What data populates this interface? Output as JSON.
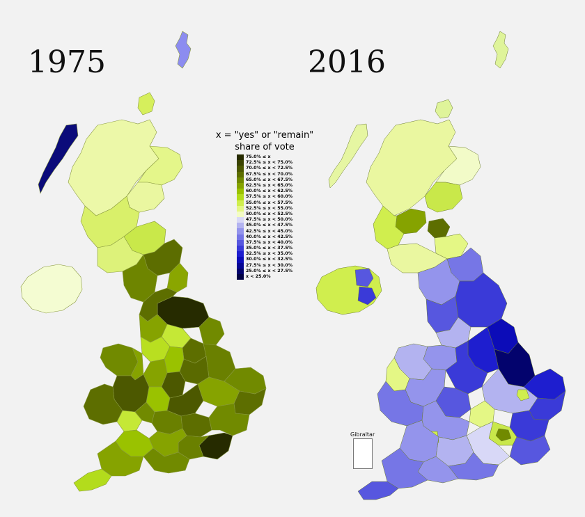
{
  "titles": {
    "left": "1975",
    "right": "2016"
  },
  "legend": {
    "title_line1": "x = \"yes\" or \"remain\"",
    "title_line2": "share of vote",
    "items": [
      {
        "label": "75.0% ≤ x",
        "color": "#262b00"
      },
      {
        "label": "72.5% ≤ x < 75.0%",
        "color": "#3a4300"
      },
      {
        "label": "70.0% ≤ x < 72.5%",
        "color": "#4c5800"
      },
      {
        "label": "67.5% ≤ x < 70.0%",
        "color": "#5d6e00"
      },
      {
        "label": "65.0% ≤ x < 67.5%",
        "color": "#718a00"
      },
      {
        "label": "62.5% ≤ x < 65.0%",
        "color": "#86a300"
      },
      {
        "label": "60.0% ≤ x < 62.5%",
        "color": "#9ac200"
      },
      {
        "label": "57.5% ≤ x < 60.0%",
        "color": "#b3dc1c"
      },
      {
        "label": "55.0% ≤ x < 57.5%",
        "color": "#d0ee4e"
      },
      {
        "label": "52.5% ≤ x < 55.0%",
        "color": "#e4f785"
      },
      {
        "label": "50.0% ≤ x < 52.5%",
        "color": "#f3fcc4"
      },
      {
        "label": "47.5% ≤ x < 50.0%",
        "color": "#d8d8f7"
      },
      {
        "label": "45.0% ≤ x < 47.5%",
        "color": "#b3b3f0"
      },
      {
        "label": "42.5% ≤ x < 45.0%",
        "color": "#9494ec"
      },
      {
        "label": "40.0% ≤ x < 42.5%",
        "color": "#7676e6"
      },
      {
        "label": "37.5% ≤ x < 40.0%",
        "color": "#5757df"
      },
      {
        "label": "35.0% ≤ x < 37.5%",
        "color": "#3a3ad8"
      },
      {
        "label": "32.5% ≤ x < 35.0%",
        "color": "#1e1ecf"
      },
      {
        "label": "30.0% ≤ x < 32.5%",
        "color": "#0c0cb8"
      },
      {
        "label": "27.5% ≤ x < 30.0%",
        "color": "#060694"
      },
      {
        "label": "25.0% ≤ x < 27.5%",
        "color": "#03036d"
      },
      {
        "label": "x < 25.0%",
        "color": "#020245"
      }
    ]
  },
  "inset_label": "Gibraltar"
}
